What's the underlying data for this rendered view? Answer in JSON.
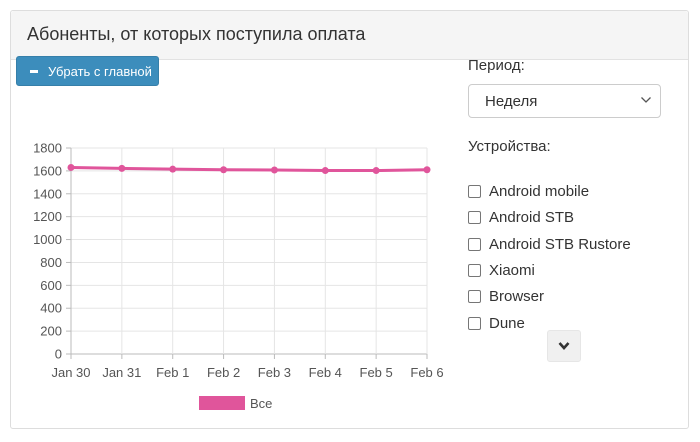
{
  "panel": {
    "title": "Абоненты, от которых поступила оплата",
    "remove_button_label": "Убрать с главной"
  },
  "period": {
    "label": "Период:",
    "selected": "Неделя"
  },
  "devices": {
    "label": "Устройства:",
    "items": [
      {
        "label": "Android mobile",
        "checked": false
      },
      {
        "label": "Android STB",
        "checked": false
      },
      {
        "label": "Android STB Rustore",
        "checked": false
      },
      {
        "label": "Xiaomi",
        "checked": false
      },
      {
        "label": "Browser",
        "checked": false
      },
      {
        "label": "Dune",
        "checked": false
      }
    ],
    "expand_icon": "chevron-down-icon"
  },
  "chart_data": {
    "type": "line",
    "categories": [
      "Jan 30",
      "Jan 31",
      "Feb 1",
      "Feb 2",
      "Feb 3",
      "Feb 4",
      "Feb 5",
      "Feb 6"
    ],
    "series": [
      {
        "name": "Все",
        "color": "#e0559b",
        "values": [
          1630,
          1622,
          1615,
          1610,
          1608,
          1603,
          1603,
          1610
        ]
      }
    ],
    "yticks": [
      0,
      200,
      400,
      600,
      800,
      1000,
      1200,
      1400,
      1600,
      1800
    ],
    "ylim": [
      0,
      1800
    ],
    "grid": true,
    "legend": "bottom"
  }
}
